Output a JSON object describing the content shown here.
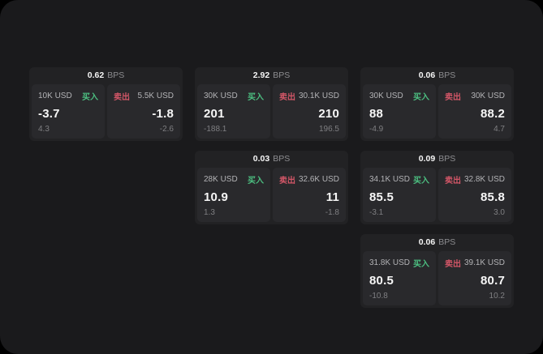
{
  "labels": {
    "bps_suffix": "BPS",
    "buy": "买入",
    "sell": "卖出"
  },
  "colors": {
    "buy_green": "#4cbf81",
    "sell_red": "#d25667",
    "screen_background": "#1a1a1c",
    "card_background": "#222224",
    "panel_background": "#29292c"
  },
  "cards": [
    {
      "bps": "0.62",
      "row": 1,
      "col": 1,
      "buy": {
        "size": "10K USD",
        "price": "-3.7",
        "delta": "4.3"
      },
      "sell": {
        "size": "5.5K USD",
        "price": "-1.8",
        "delta": "-2.6"
      }
    },
    {
      "bps": "2.92",
      "row": 1,
      "col": 2,
      "buy": {
        "size": "30K USD",
        "price": "201",
        "delta": "-188.1"
      },
      "sell": {
        "size": "30.1K USD",
        "price": "210",
        "delta": "196.5"
      }
    },
    {
      "bps": "0.06",
      "row": 1,
      "col": 3,
      "buy": {
        "size": "30K USD",
        "price": "88",
        "delta": "-4.9"
      },
      "sell": {
        "size": "30K USD",
        "price": "88.2",
        "delta": "4.7"
      }
    },
    {
      "bps": "0.03",
      "row": 2,
      "col": 2,
      "buy": {
        "size": "28K USD",
        "price": "10.9",
        "delta": "1.3"
      },
      "sell": {
        "size": "32.6K USD",
        "price": "11",
        "delta": "-1.8"
      }
    },
    {
      "bps": "0.09",
      "row": 2,
      "col": 3,
      "buy": {
        "size": "34.1K USD",
        "price": "85.5",
        "delta": "-3.1"
      },
      "sell": {
        "size": "32.8K USD",
        "price": "85.8",
        "delta": "3.0"
      }
    },
    {
      "bps": "0.06",
      "row": 3,
      "col": 3,
      "buy": {
        "size": "31.8K USD",
        "price": "80.5",
        "delta": "-10.8"
      },
      "sell": {
        "size": "39.1K USD",
        "price": "80.7",
        "delta": "10.2"
      }
    }
  ]
}
